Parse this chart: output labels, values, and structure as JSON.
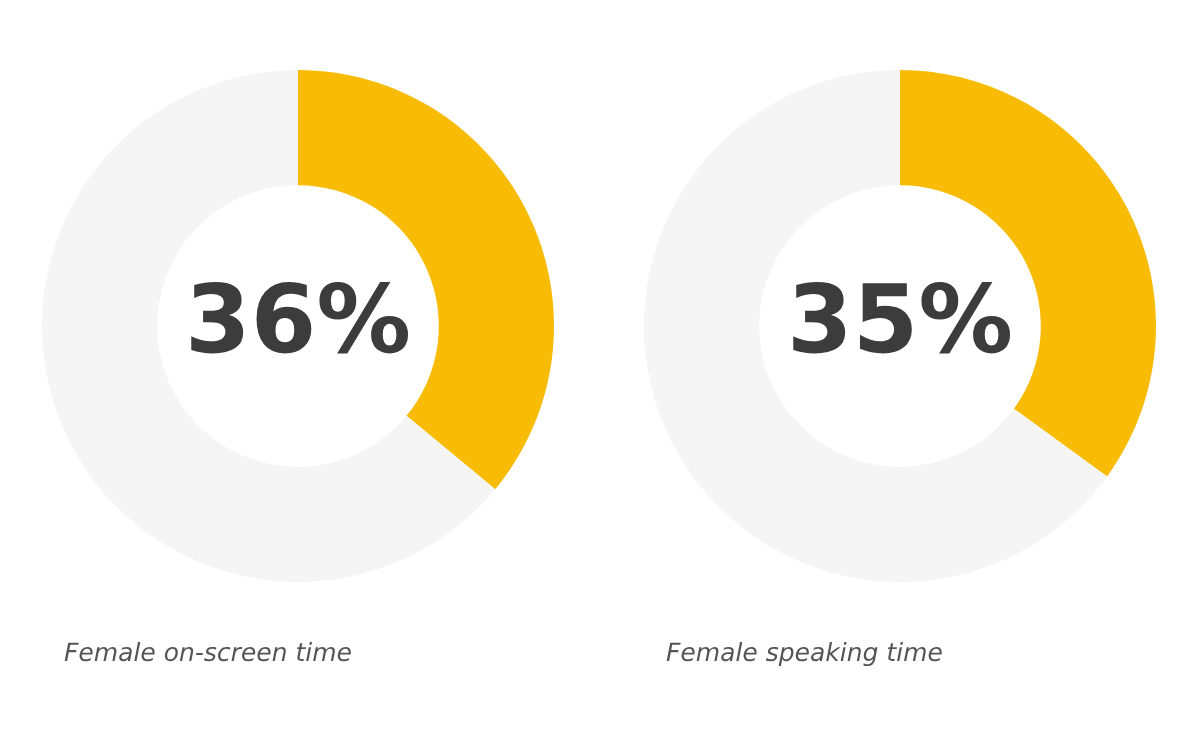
{
  "chart_data": [
    {
      "type": "donut",
      "title": "Female on-screen time",
      "categories": [
        null,
        null
      ],
      "values": [
        36,
        64
      ],
      "colors": [
        "#f9bc06",
        "#f5f5f5"
      ],
      "value_labels": [
        "36%",
        null
      ]
    },
    {
      "type": "donut",
      "title": "Female speaking time",
      "categories": [
        null,
        null
      ],
      "values": [
        35,
        65
      ],
      "colors": [
        "#f9bc06",
        "#f5f5f5"
      ],
      "value_labels": [
        "35%",
        null
      ]
    }
  ]
}
